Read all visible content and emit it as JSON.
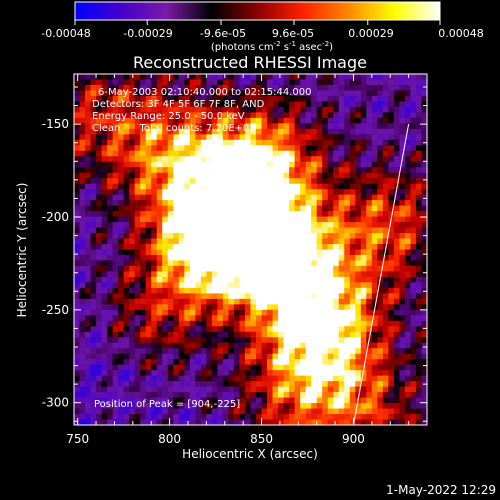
{
  "colorbar": {
    "ticks": [
      -0.00048,
      -0.00029,
      -9.6e-05,
      9.6e-05,
      0.00029,
      0.00048
    ],
    "tick_labels": [
      "-0.00048",
      "-0.00029",
      "-9.6e-05",
      "9.6e-05",
      "0.00029",
      "0.00048"
    ],
    "units": {
      "pre": "(photons cm",
      "s1": "-2",
      "mid1": " s",
      "s2": "-1",
      "mid2": " asec",
      "s3": "-2",
      "post": ")"
    },
    "range": [
      -0.00048,
      0.00048
    ],
    "colors": [
      "#0000ff",
      "#4400cc",
      "#7a1aa8",
      "#000000",
      "#8b0000",
      "#ff2200",
      "#ff8800",
      "#ffff00",
      "#ffffff"
    ]
  },
  "chart_data": {
    "type": "heatmap",
    "title": "Reconstructed RHESSI Image",
    "xlabel": "Heliocentric X (arcsec)",
    "ylabel": "Heliocentric Y (arcsec)",
    "xlim": [
      748,
      940
    ],
    "ylim": [
      -312,
      -123
    ],
    "x_ticks": [
      750,
      800,
      850,
      900
    ],
    "y_ticks": [
      -150,
      -200,
      -250,
      -300
    ],
    "annotations": {
      "time": "6-May-2003 02:10:40.000 to 02:15:44.000",
      "detectors": "Detectors: 3F 4F 5F 6F 7F 8F, AND",
      "energy": "Energy Range: 25.0 - 50.0 keV",
      "clean": "Clean      Total counts: 7.20E+03",
      "peak": "Position of Peak = [904,-225]"
    },
    "peak_position": [
      904,
      -225
    ],
    "sources": [
      {
        "x": 820,
        "y": -215,
        "strength": 1.0
      },
      {
        "x": 862,
        "y": -222,
        "strength": 1.0
      },
      {
        "x": 838,
        "y": -188,
        "strength": 0.85
      },
      {
        "x": 884,
        "y": -258,
        "strength": 0.9
      },
      {
        "x": 800,
        "y": -165,
        "strength": 0.6
      },
      {
        "x": 852,
        "y": -168,
        "strength": 0.55
      },
      {
        "x": 870,
        "y": -292,
        "strength": 0.5
      },
      {
        "x": 790,
        "y": -255,
        "strength": 0.45
      },
      {
        "x": 918,
        "y": -205,
        "strength": 0.55
      },
      {
        "x": 760,
        "y": -145,
        "strength": 0.4
      },
      {
        "x": 905,
        "y": -305,
        "strength": 0.45
      }
    ],
    "limb": [
      [
        930,
        -150
      ],
      [
        900,
        -312
      ]
    ]
  },
  "footer": {
    "date": "1-May-2022 12:29"
  }
}
